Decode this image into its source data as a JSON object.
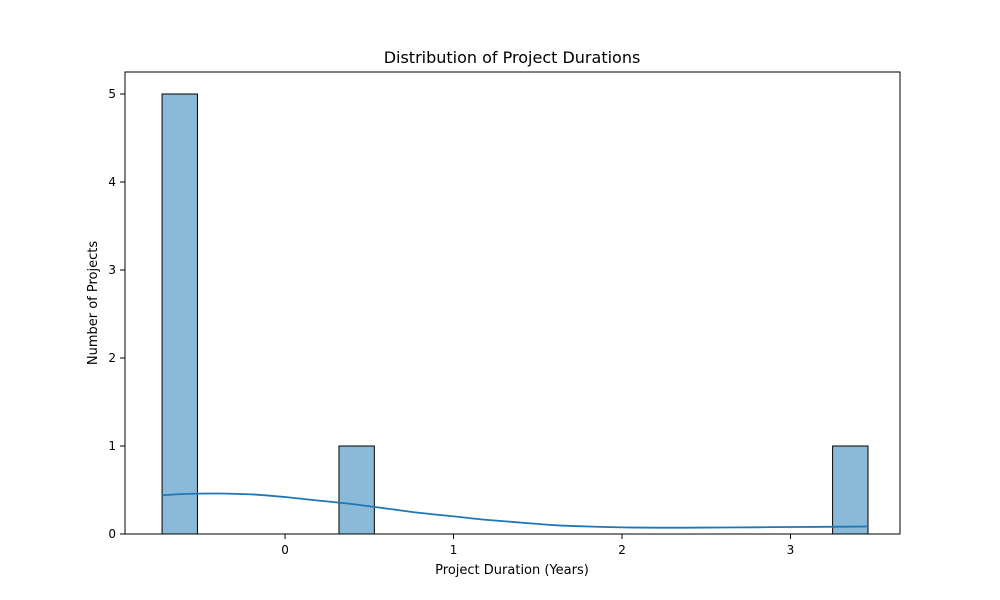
{
  "chart_data": {
    "type": "bar",
    "title": "Distribution of Project Durations",
    "xlabel": "Project Duration (Years)",
    "ylabel": "Number of Projects",
    "xlim": [
      -0.95,
      3.65
    ],
    "ylim": [
      0,
      5.25
    ],
    "xticks": [
      0,
      1,
      2,
      3
    ],
    "yticks": [
      0,
      1,
      2,
      3,
      4,
      5
    ],
    "grid": false,
    "bars": [
      {
        "x0": -0.73,
        "x1": -0.52,
        "count": 5
      },
      {
        "x0": 0.32,
        "x1": 0.53,
        "count": 1
      },
      {
        "x0": 3.25,
        "x1": 3.46,
        "count": 1
      }
    ],
    "kde": {
      "x": [
        -0.73,
        -0.6,
        -0.4,
        -0.2,
        0,
        0.2,
        0.4,
        0.6,
        0.8,
        1.0,
        1.2,
        1.4,
        1.6,
        1.8,
        2.0,
        2.2,
        2.4,
        2.6,
        2.8,
        3.0,
        3.2,
        3.46
      ],
      "y": [
        0.44,
        0.455,
        0.46,
        0.45,
        0.42,
        0.38,
        0.34,
        0.29,
        0.24,
        0.2,
        0.16,
        0.13,
        0.1,
        0.085,
        0.075,
        0.072,
        0.072,
        0.074,
        0.076,
        0.079,
        0.082,
        0.085
      ]
    },
    "colors": {
      "bar_fill": "#8bbad9",
      "bar_edge": "#000000",
      "kde_line": "#1f77b4"
    }
  }
}
